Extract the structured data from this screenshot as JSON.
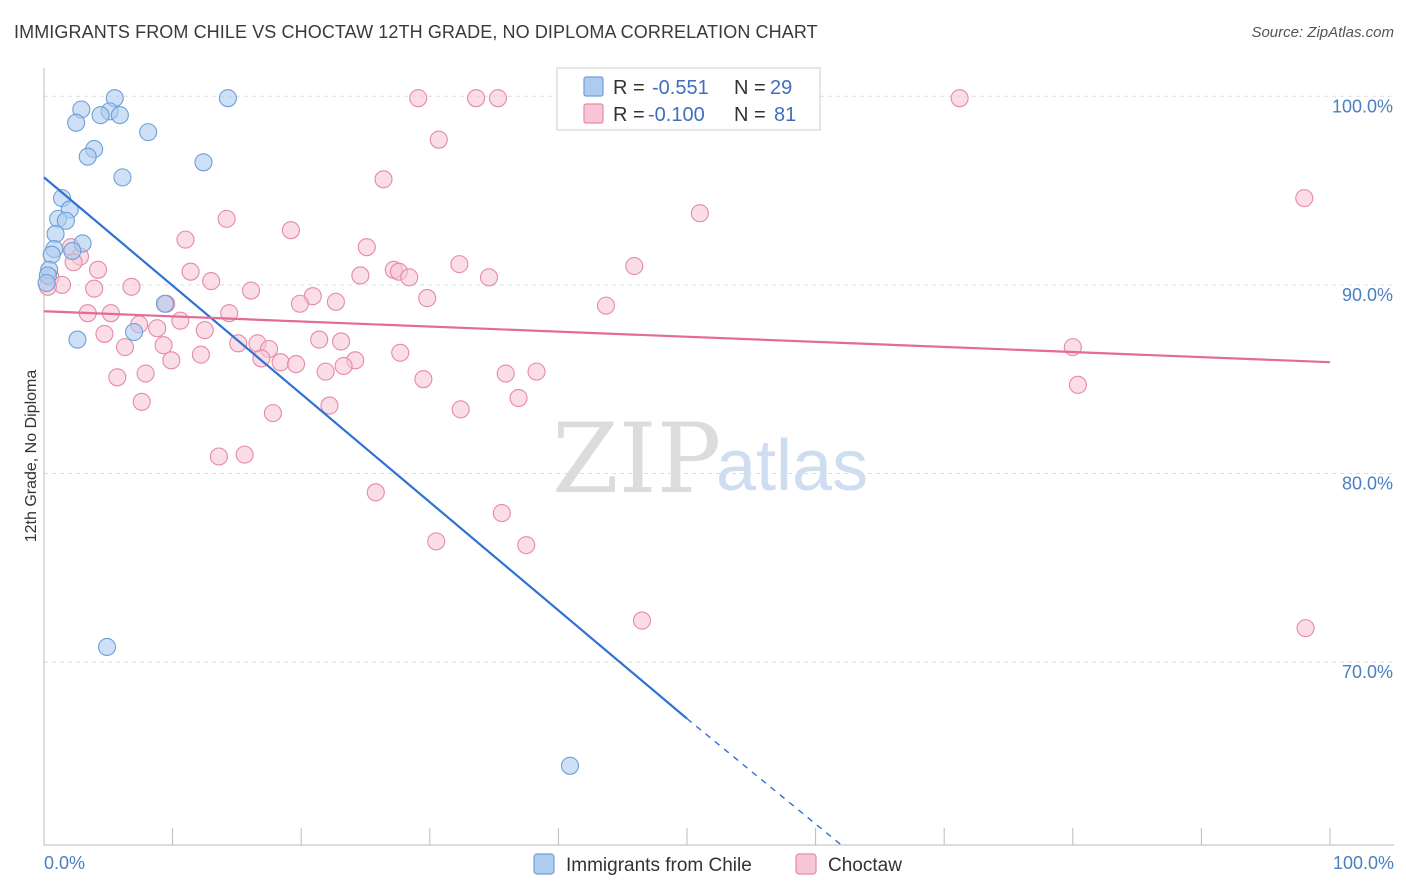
{
  "header": {
    "title": "IMMIGRANTS FROM CHILE VS CHOCTAW 12TH GRADE, NO DIPLOMA CORRELATION CHART",
    "source": "Source: ZipAtlas.com"
  },
  "watermark": {
    "zip": "ZIP",
    "atlas": "atlas"
  },
  "colors": {
    "blue_fill": "#aecbf0",
    "blue_stroke": "#6f9fd8",
    "blue_line": "#2f72d4",
    "pink_fill": "#f7c6d6",
    "pink_stroke": "#e58aa8",
    "pink_line": "#e36b96",
    "tick_text": "#4a7fc1",
    "grid": "#dddddd"
  },
  "legend": {
    "rows": [
      {
        "r_label": "R =",
        "r_value": "-0.551",
        "n_label": "N =",
        "n_value": "29"
      },
      {
        "r_label": "R =",
        "r_value": "-0.100",
        "n_label": "N =",
        "n_value": "81"
      }
    ]
  },
  "chart_data": {
    "type": "scatter",
    "xlabel": "",
    "ylabel": "12th Grade, No Diploma",
    "xlim": [
      0,
      100
    ],
    "ylim": [
      60.3,
      101.5
    ],
    "x_tick_labels": [
      "0.0%",
      "100.0%"
    ],
    "y_ticks": [
      70,
      80,
      90,
      100
    ],
    "y_tick_labels": [
      "70.0%",
      "80.0%",
      "90.0%",
      "100.0%"
    ],
    "grid": true,
    "legend_position": "top-center",
    "series": [
      {
        "name": "Immigrants from Chile",
        "color": "#aecbf0",
        "points": [
          [
            5.5,
            99.9
          ],
          [
            14.3,
            99.9
          ],
          [
            2.9,
            99.3
          ],
          [
            5.1,
            99.2
          ],
          [
            4.4,
            99.0
          ],
          [
            5.9,
            99.0
          ],
          [
            2.5,
            98.6
          ],
          [
            8.1,
            98.1
          ],
          [
            3.9,
            97.2
          ],
          [
            3.4,
            96.8
          ],
          [
            12.4,
            96.5
          ],
          [
            6.1,
            95.7
          ],
          [
            1.4,
            94.6
          ],
          [
            2.0,
            94.0
          ],
          [
            1.1,
            93.5
          ],
          [
            1.7,
            93.4
          ],
          [
            0.9,
            92.7
          ],
          [
            3.0,
            92.2
          ],
          [
            0.8,
            91.9
          ],
          [
            0.6,
            91.6
          ],
          [
            2.2,
            91.8
          ],
          [
            0.4,
            90.8
          ],
          [
            0.3,
            90.5
          ],
          [
            9.4,
            89.0
          ],
          [
            7.0,
            87.5
          ],
          [
            2.6,
            87.1
          ],
          [
            4.9,
            70.8
          ],
          [
            40.9,
            64.5
          ],
          [
            0.2,
            90.1
          ]
        ],
        "trend": {
          "x": [
            0.0,
            50.0
          ],
          "y": [
            95.7,
            67.0
          ],
          "dashed_to": [
            62.0,
            60.3
          ]
        }
      },
      {
        "name": "Choctaw",
        "color": "#f7c6d6",
        "points": [
          [
            29.1,
            99.9
          ],
          [
            33.6,
            99.9
          ],
          [
            35.3,
            99.9
          ],
          [
            71.2,
            99.9
          ],
          [
            30.7,
            97.7
          ],
          [
            26.4,
            95.6
          ],
          [
            98.0,
            94.6
          ],
          [
            51.0,
            93.8
          ],
          [
            14.2,
            93.5
          ],
          [
            19.2,
            92.9
          ],
          [
            11.0,
            92.4
          ],
          [
            25.1,
            92.0
          ],
          [
            2.1,
            92.0
          ],
          [
            2.8,
            91.5
          ],
          [
            2.3,
            91.2
          ],
          [
            32.3,
            91.1
          ],
          [
            45.9,
            91.0
          ],
          [
            27.2,
            90.8
          ],
          [
            27.6,
            90.7
          ],
          [
            11.4,
            90.7
          ],
          [
            28.4,
            90.4
          ],
          [
            24.6,
            90.5
          ],
          [
            34.6,
            90.4
          ],
          [
            4.2,
            90.8
          ],
          [
            0.5,
            90.4
          ],
          [
            1.4,
            90.0
          ],
          [
            13.0,
            90.2
          ],
          [
            3.9,
            89.8
          ],
          [
            6.8,
            89.9
          ],
          [
            16.1,
            89.7
          ],
          [
            20.9,
            89.4
          ],
          [
            19.9,
            89.0
          ],
          [
            22.7,
            89.1
          ],
          [
            29.8,
            89.3
          ],
          [
            43.7,
            88.9
          ],
          [
            9.5,
            89.0
          ],
          [
            3.4,
            88.5
          ],
          [
            5.2,
            88.5
          ],
          [
            14.4,
            88.5
          ],
          [
            10.6,
            88.1
          ],
          [
            7.4,
            87.9
          ],
          [
            8.8,
            87.7
          ],
          [
            12.5,
            87.6
          ],
          [
            4.7,
            87.4
          ],
          [
            21.4,
            87.1
          ],
          [
            23.1,
            87.0
          ],
          [
            15.1,
            86.9
          ],
          [
            16.6,
            86.9
          ],
          [
            6.3,
            86.7
          ],
          [
            9.3,
            86.8
          ],
          [
            17.5,
            86.6
          ],
          [
            27.7,
            86.4
          ],
          [
            12.2,
            86.3
          ],
          [
            9.9,
            86.0
          ],
          [
            16.9,
            86.1
          ],
          [
            18.4,
            85.9
          ],
          [
            19.6,
            85.8
          ],
          [
            24.2,
            86.0
          ],
          [
            23.3,
            85.7
          ],
          [
            21.9,
            85.4
          ],
          [
            7.9,
            85.3
          ],
          [
            5.7,
            85.1
          ],
          [
            35.9,
            85.3
          ],
          [
            38.3,
            85.4
          ],
          [
            29.5,
            85.0
          ],
          [
            80.0,
            86.7
          ],
          [
            80.4,
            84.7
          ],
          [
            7.6,
            83.8
          ],
          [
            36.9,
            84.0
          ],
          [
            22.2,
            83.6
          ],
          [
            32.4,
            83.4
          ],
          [
            17.8,
            83.2
          ],
          [
            15.6,
            81.0
          ],
          [
            13.6,
            80.9
          ],
          [
            25.8,
            79.0
          ],
          [
            35.6,
            77.9
          ],
          [
            30.5,
            76.4
          ],
          [
            37.5,
            76.2
          ],
          [
            46.5,
            72.2
          ],
          [
            98.1,
            71.8
          ],
          [
            0.3,
            89.9
          ]
        ],
        "trend": {
          "x": [
            0.0,
            100.0
          ],
          "y": [
            88.6,
            85.9
          ]
        }
      }
    ]
  }
}
